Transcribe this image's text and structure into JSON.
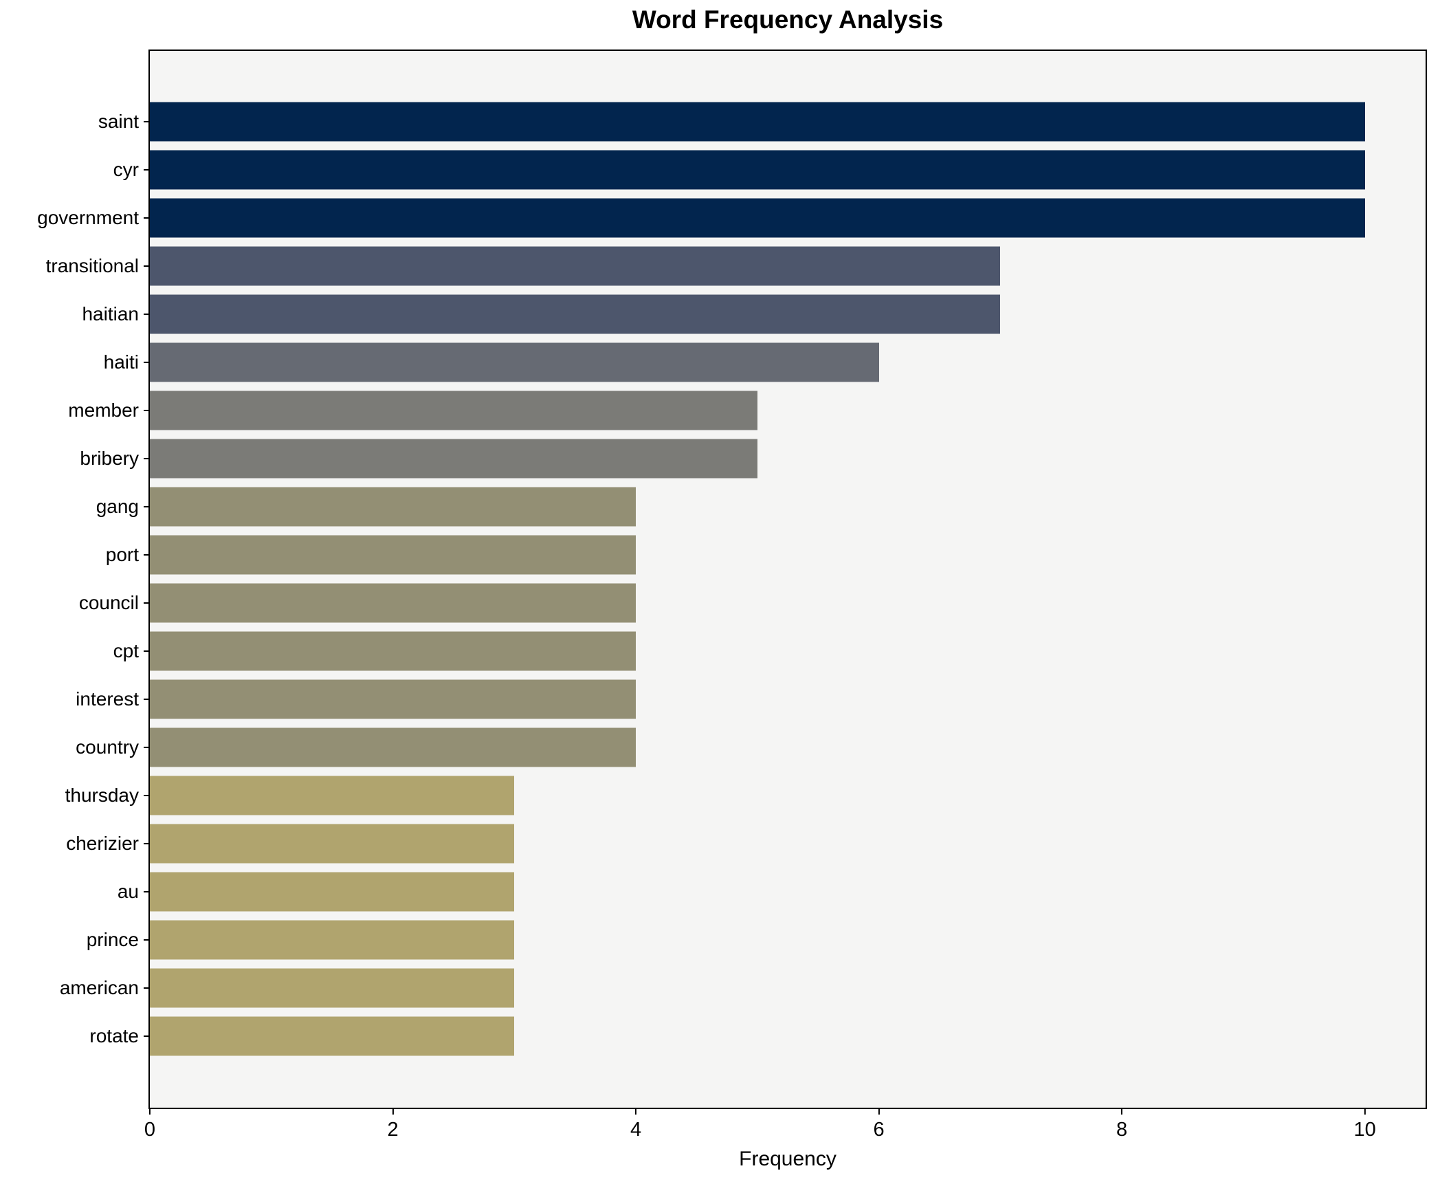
{
  "title": "Word Frequency Analysis",
  "chart_data": {
    "type": "bar",
    "orientation": "horizontal",
    "title": "Word Frequency Analysis",
    "xlabel": "Frequency",
    "ylabel": "",
    "xlim": [
      0,
      10.5
    ],
    "xticks": [
      0,
      2,
      4,
      6,
      8,
      10
    ],
    "grid": false,
    "legend": "none",
    "categories": [
      "saint",
      "cyr",
      "government",
      "transitional",
      "haitian",
      "haiti",
      "member",
      "bribery",
      "gang",
      "port",
      "council",
      "cpt",
      "interest",
      "country",
      "thursday",
      "cherizier",
      "au",
      "prince",
      "american",
      "rotate"
    ],
    "values": [
      10,
      10,
      10,
      7,
      7,
      6,
      5,
      5,
      4,
      4,
      4,
      4,
      4,
      4,
      3,
      3,
      3,
      3,
      3,
      3
    ],
    "bar_colors": [
      "#02254e",
      "#02254e",
      "#02254e",
      "#4d566c",
      "#4d566c",
      "#666a73",
      "#7b7b77",
      "#7b7b77",
      "#938f74",
      "#938f74",
      "#938f74",
      "#938f74",
      "#938f74",
      "#938f74",
      "#b0a46e",
      "#b0a46e",
      "#b0a46e",
      "#b0a46e",
      "#b0a46e",
      "#b0a46e"
    ],
    "colors": {
      "plot_background": "#f5f5f4",
      "figure_background": "#ffffff",
      "axis_line": "#000000",
      "text": "#000000"
    }
  }
}
